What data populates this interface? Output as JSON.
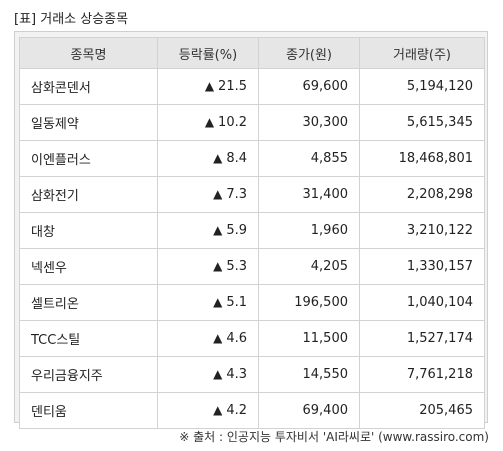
{
  "title": "[표] 거래소 상승종목",
  "headers": [
    "종목명",
    "등락률(%)",
    "종가(원)",
    "거래량(주)"
  ],
  "up_symbol": "▲",
  "colors": {
    "up": "#d9302c",
    "header_bg": "#e6e6e6",
    "frame_bg": "#f2f2f2"
  },
  "rows": [
    {
      "name": "삼화콘덴서",
      "rate": "21.5",
      "close": "69,600",
      "volume": "5,194,120"
    },
    {
      "name": "일동제약",
      "rate": "10.2",
      "close": "30,300",
      "volume": "5,615,345"
    },
    {
      "name": "이엔플러스",
      "rate": "8.4",
      "close": "4,855",
      "volume": "18,468,801"
    },
    {
      "name": "삼화전기",
      "rate": "7.3",
      "close": "31,400",
      "volume": "2,208,298"
    },
    {
      "name": "대창",
      "rate": "5.9",
      "close": "1,960",
      "volume": "3,210,122"
    },
    {
      "name": "넥센우",
      "rate": "5.3",
      "close": "4,205",
      "volume": "1,330,157"
    },
    {
      "name": "셀트리온",
      "rate": "5.1",
      "close": "196,500",
      "volume": "1,040,104"
    },
    {
      "name": "TCC스틸",
      "rate": "4.6",
      "close": "11,500",
      "volume": "1,527,174"
    },
    {
      "name": "우리금융지주",
      "rate": "4.3",
      "close": "14,550",
      "volume": "7,761,218"
    },
    {
      "name": "덴티움",
      "rate": "4.2",
      "close": "69,400",
      "volume": "205,465"
    }
  ],
  "footer": "※ 출처 : 인공지능 투자비서 'AI라씨로' (www.rassiro.com)"
}
